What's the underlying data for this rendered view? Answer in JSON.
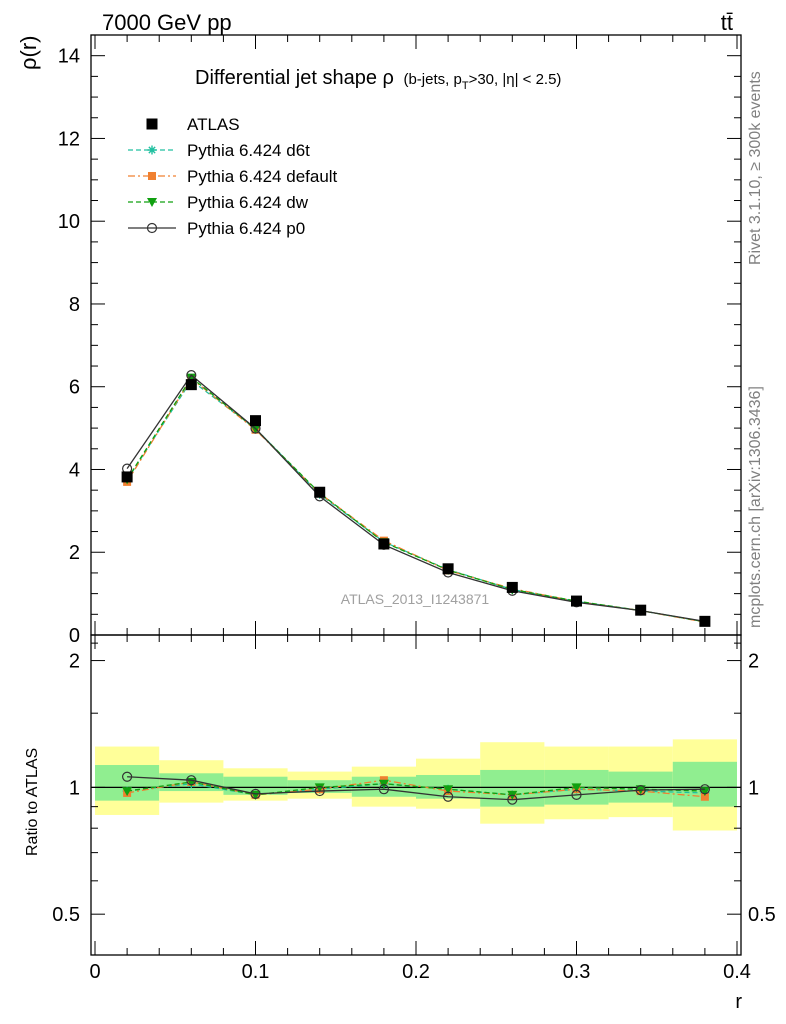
{
  "header": {
    "left": "7000 GeV pp",
    "right": "tt̄"
  },
  "side_text": {
    "rivet": "Rivet 3.1.10, ≥ 300k events",
    "mcplots": "mcplots.cern.ch [arXiv:1306.3436]"
  },
  "chart_data": {
    "type": "line",
    "title_main": "Differential jet shape ρ",
    "title_sub": "(b-jets, p",
    "title_sub_T": "T",
    "title_sub_rest": ">30, |η| < 2.5)",
    "watermark": "ATLAS_2013_I1243871",
    "xlabel": "r",
    "ylabel_main": "ρ(r)",
    "ylabel_ratio": "Ratio to ATLAS",
    "xlim": [
      -0.0025,
      0.4025
    ],
    "ylim_main": [
      0,
      14.5
    ],
    "ylim_ratio": [
      0.4,
      2.3
    ],
    "ratio_log": true,
    "x_ticks": [
      "0",
      "0.1",
      "0.2",
      "0.3",
      "0.4"
    ],
    "y_ticks_main": [
      "0",
      "2",
      "4",
      "6",
      "8",
      "10",
      "12",
      "14"
    ],
    "y_ticks_ratio": [
      "0.5",
      "1",
      "2"
    ],
    "x": [
      0.02,
      0.06,
      0.1,
      0.14,
      0.18,
      0.22,
      0.26,
      0.3,
      0.34,
      0.38
    ],
    "bin_edges": [
      0.0,
      0.04,
      0.08,
      0.12,
      0.16,
      0.2,
      0.24,
      0.28,
      0.32,
      0.36,
      0.4
    ],
    "band_green": [
      [
        0.93,
        1.13
      ],
      [
        0.98,
        1.08
      ],
      [
        0.96,
        1.06
      ],
      [
        0.97,
        1.04
      ],
      [
        0.95,
        1.06
      ],
      [
        0.94,
        1.07
      ],
      [
        0.9,
        1.1
      ],
      [
        0.91,
        1.1
      ],
      [
        0.92,
        1.09
      ],
      [
        0.9,
        1.15
      ]
    ],
    "band_yellow": [
      [
        0.86,
        1.25
      ],
      [
        0.92,
        1.16
      ],
      [
        0.93,
        1.11
      ],
      [
        0.94,
        1.09
      ],
      [
        0.9,
        1.12
      ],
      [
        0.89,
        1.17
      ],
      [
        0.82,
        1.28
      ],
      [
        0.84,
        1.25
      ],
      [
        0.85,
        1.25
      ],
      [
        0.79,
        1.3
      ]
    ],
    "series": [
      {
        "name": "ATLAS",
        "values": [
          3.82,
          6.05,
          5.18,
          3.45,
          2.2,
          1.6,
          1.15,
          0.82,
          0.6,
          0.33
        ],
        "color": "#000000",
        "marker": "square",
        "dash": "none"
      },
      {
        "name": "Pythia 6.424 d6t",
        "values": [
          3.75,
          6.15,
          4.99,
          3.4,
          2.25,
          1.58,
          1.1,
          0.81,
          0.59,
          0.32
        ],
        "color": "#20c0a0",
        "marker": "star",
        "dash": "dashed"
      },
      {
        "name": "Pythia 6.424 default",
        "values": [
          3.7,
          6.2,
          4.96,
          3.42,
          2.28,
          1.56,
          1.12,
          0.81,
          0.59,
          0.31
        ],
        "color": "#f08030",
        "marker": "filled-square",
        "dash": "dashdot"
      },
      {
        "name": "Pythia 6.424 dw",
        "values": [
          3.76,
          6.22,
          4.98,
          3.43,
          2.24,
          1.57,
          1.1,
          0.82,
          0.59,
          0.32
        ],
        "color": "#10a010",
        "marker": "triangle-down",
        "dash": "dashed"
      },
      {
        "name": "Pythia 6.424 p0",
        "values": [
          4.02,
          6.28,
          4.99,
          3.35,
          2.18,
          1.51,
          1.07,
          0.79,
          0.59,
          0.33
        ],
        "color": "#333333",
        "marker": "open-circle",
        "dash": "none"
      }
    ],
    "ratios": {
      "Pythia 6.424 d6t": [
        0.98,
        1.02,
        0.96,
        0.99,
        1.02,
        0.99,
        0.96,
        0.99,
        0.98,
        0.97
      ],
      "Pythia 6.424 default": [
        0.97,
        1.03,
        0.96,
        0.99,
        1.04,
        0.98,
        0.96,
        0.99,
        0.98,
        0.95
      ],
      "Pythia 6.424 dw": [
        0.98,
        1.03,
        0.96,
        1.0,
        1.02,
        0.99,
        0.96,
        1.0,
        0.99,
        0.98
      ],
      "Pythia 6.424 p0": [
        1.06,
        1.04,
        0.965,
        0.98,
        0.99,
        0.95,
        0.935,
        0.96,
        0.985,
        0.99
      ]
    }
  }
}
